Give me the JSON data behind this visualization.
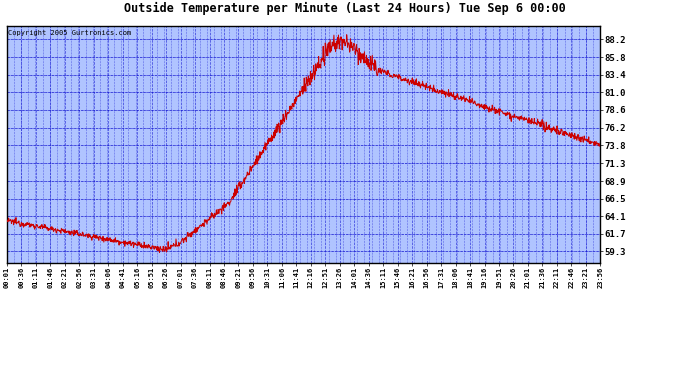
{
  "title": "Outside Temperature per Minute (Last 24 Hours) Tue Sep 6 00:00",
  "copyright_text": "Copyright 2005 Gurtronics.com",
  "background_color": "#b0c4ff",
  "line_color": "#cc0000",
  "grid_color": "#0000cc",
  "border_color": "#000000",
  "yticks": [
    59.3,
    61.7,
    64.1,
    66.5,
    68.9,
    71.3,
    73.8,
    76.2,
    78.6,
    81.0,
    83.4,
    85.8,
    88.2
  ],
  "ylim": [
    57.8,
    90.0
  ],
  "x_labels": [
    "00:01",
    "00:36",
    "01:11",
    "01:46",
    "02:21",
    "02:56",
    "03:31",
    "04:06",
    "04:41",
    "05:16",
    "05:51",
    "06:26",
    "07:01",
    "07:36",
    "08:11",
    "08:46",
    "09:21",
    "09:56",
    "10:31",
    "11:06",
    "11:41",
    "12:16",
    "12:51",
    "13:26",
    "14:01",
    "14:36",
    "15:11",
    "15:46",
    "16:21",
    "16:56",
    "17:31",
    "18:06",
    "18:41",
    "19:16",
    "19:51",
    "20:26",
    "21:01",
    "21:36",
    "22:11",
    "22:46",
    "23:21",
    "23:56"
  ],
  "figsize": [
    6.9,
    3.75
  ],
  "dpi": 100
}
